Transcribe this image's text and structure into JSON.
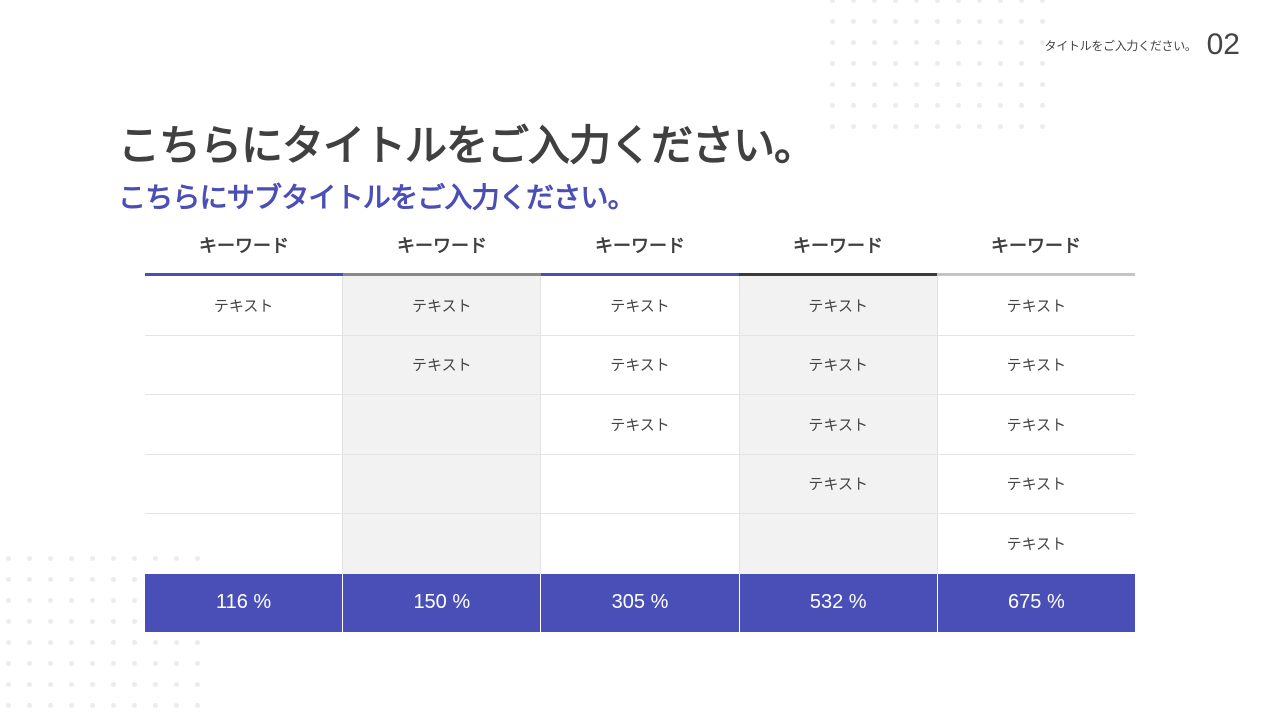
{
  "header": {
    "meta_title": "タイトルをご入力ください。",
    "page_number": "02"
  },
  "title": "こちらにタイトルをご入力ください。",
  "subtitle": "こちらにサブタイトルをご入力ください。",
  "colors": {
    "accent": "#4a4fb8",
    "subtitle": "#4a4eb5",
    "title": "#404040",
    "shaded_column": "#f2f2f3"
  },
  "table": {
    "columns": [
      {
        "header": "キーワード",
        "underline": "#4a4fb8",
        "shaded": false,
        "rows": [
          "テキスト",
          "",
          "",
          "",
          ""
        ],
        "total": "116 %"
      },
      {
        "header": "キーワード",
        "underline": "#8a8a8a",
        "shaded": true,
        "rows": [
          "テキスト",
          "テキスト",
          "",
          "",
          ""
        ],
        "total": "150 %"
      },
      {
        "header": "キーワード",
        "underline": "#4a4fb8",
        "shaded": false,
        "rows": [
          "テキスト",
          "テキスト",
          "テキスト",
          "",
          ""
        ],
        "total": "305 %"
      },
      {
        "header": "キーワード",
        "underline": "#3a3a3a",
        "shaded": true,
        "rows": [
          "テキスト",
          "テキスト",
          "テキスト",
          "テキスト",
          ""
        ],
        "total": "532 %"
      },
      {
        "header": "キーワード",
        "underline": "#c4c4c4",
        "shaded": false,
        "rows": [
          "テキスト",
          "テキスト",
          "テキスト",
          "テキスト",
          "テキスト"
        ],
        "total": "675 %"
      }
    ]
  }
}
